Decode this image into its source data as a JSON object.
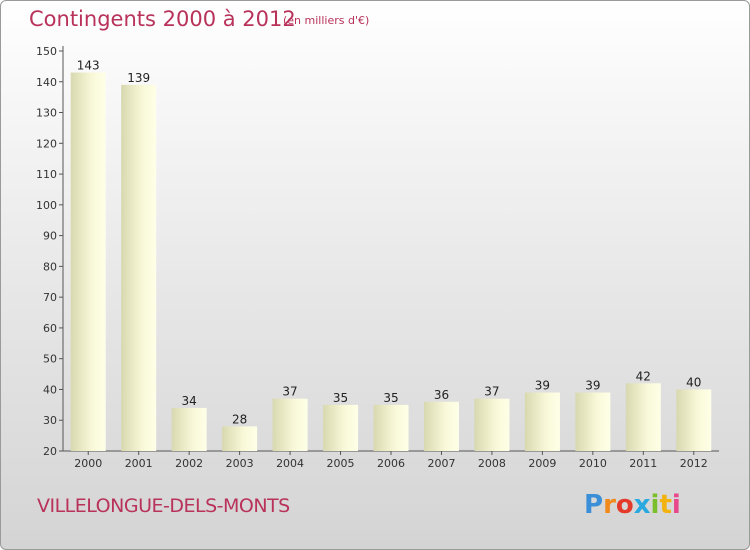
{
  "header": {
    "title": "Contingents 2000 à 2012",
    "subtitle": "(en milliers d'€)"
  },
  "footer": {
    "commune": "VILLELONGUE-DELS-MONTS",
    "logo": "Proxiti"
  },
  "colors": {
    "title": "#b8325a",
    "bar_light": "#fdfde0",
    "bar_dark": "#d6d6ae"
  },
  "chart_data": {
    "type": "bar",
    "title": "Contingents 2000 à 2012",
    "subtitle": "(en milliers d'€)",
    "categories": [
      "2000",
      "2001",
      "2002",
      "2003",
      "2004",
      "2005",
      "2006",
      "2007",
      "2008",
      "2009",
      "2010",
      "2011",
      "2012"
    ],
    "values": [
      143,
      139,
      34,
      28,
      37,
      35,
      35,
      36,
      37,
      39,
      39,
      42,
      40
    ],
    "ylim": [
      20,
      150
    ],
    "yticks": [
      20,
      30,
      40,
      50,
      60,
      70,
      80,
      90,
      100,
      110,
      120,
      130,
      140,
      150
    ],
    "xlabel": "",
    "ylabel": "",
    "grid": false
  }
}
